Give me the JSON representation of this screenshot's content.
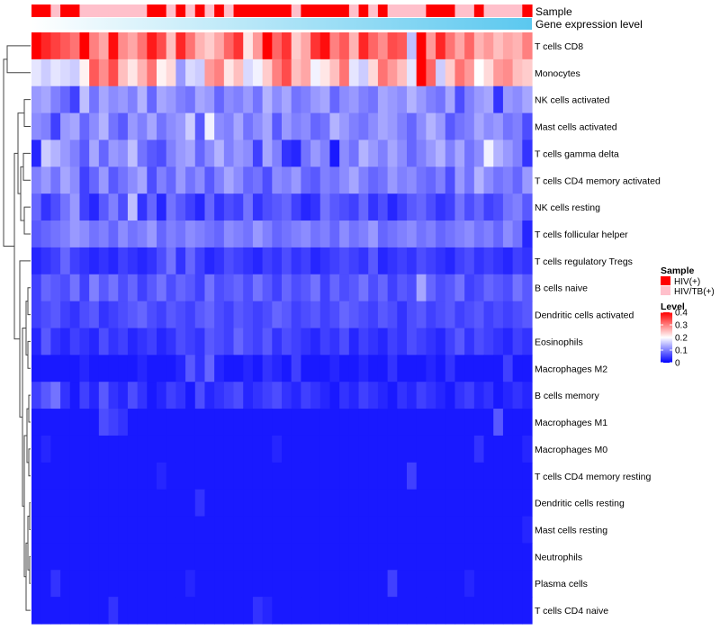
{
  "chart_data": {
    "type": "heatmap",
    "title": "",
    "annotation_tracks": [
      {
        "name": "Sample",
        "kind": "categorical"
      },
      {
        "name": "Gene expression level",
        "kind": "continuous"
      }
    ],
    "sample_groups": [
      "HIV(+)",
      "HIV(+)",
      "HIV/TB(+)",
      "HIV(+)",
      "HIV(+)",
      "HIV/TB(+)",
      "HIV/TB(+)",
      "HIV/TB(+)",
      "HIV/TB(+)",
      "HIV/TB(+)",
      "HIV/TB(+)",
      "HIV/TB(+)",
      "HIV(+)",
      "HIV(+)",
      "HIV/TB(+)",
      "HIV(+)",
      "HIV/TB(+)",
      "HIV(+)",
      "HIV/TB(+)",
      "HIV(+)",
      "HIV/TB(+)",
      "HIV(+)",
      "HIV(+)",
      "HIV(+)",
      "HIV(+)",
      "HIV(+)",
      "HIV(+)",
      "HIV/TB(+)",
      "HIV(+)",
      "HIV(+)",
      "HIV(+)",
      "HIV(+)",
      "HIV(+)",
      "HIV/TB(+)",
      "HIV(+)",
      "HIV/TB(+)",
      "HIV(+)",
      "HIV/TB(+)",
      "HIV/TB(+)",
      "HIV/TB(+)",
      "HIV/TB(+)",
      "HIV(+)",
      "HIV(+)",
      "HIV(+)",
      "HIV/TB(+)",
      "HIV/TB(+)",
      "HIV(+)",
      "HIV/TB(+)",
      "HIV/TB(+)",
      "HIV/TB(+)",
      "HIV/TB(+)",
      "HIV(+)"
    ],
    "rows": [
      "T cells CD8",
      "Monocytes",
      "NK cells activated",
      "Mast cells activated",
      "T cells gamma delta",
      "T cells CD4 memory activated",
      "NK cells resting",
      "T cells follicular helper",
      "T cells regulatory  Tregs",
      "B cells naive",
      "Dendritic cells activated",
      "Eosinophils",
      "Macrophages M2",
      "B cells memory",
      "Macrophages M1",
      "Macrophages M0",
      "T cells CD4 memory resting",
      "Dendritic cells resting",
      "Mast cells resting",
      "Neutrophils",
      "Plasma cells",
      "T cells CD4 naive"
    ],
    "values": [
      [
        0.42,
        0.37,
        0.35,
        0.33,
        0.31,
        0.4,
        0.3,
        0.27,
        0.39,
        0.29,
        0.27,
        0.31,
        0.38,
        0.34,
        0.25,
        0.37,
        0.31,
        0.26,
        0.24,
        0.27,
        0.32,
        0.36,
        0.22,
        0.28,
        0.4,
        0.32,
        0.36,
        0.24,
        0.27,
        0.36,
        0.39,
        0.3,
        0.33,
        0.26,
        0.37,
        0.32,
        0.29,
        0.34,
        0.33,
        0.15,
        0.41,
        0.28,
        0.37,
        0.31,
        0.27,
        0.32,
        0.26,
        0.28,
        0.25,
        0.27,
        0.26,
        0.3
      ],
      [
        0.18,
        0.16,
        0.18,
        0.17,
        0.16,
        0.21,
        0.33,
        0.29,
        0.34,
        0.25,
        0.22,
        0.26,
        0.31,
        0.21,
        0.23,
        0.12,
        0.17,
        0.16,
        0.28,
        0.3,
        0.22,
        0.25,
        0.17,
        0.19,
        0.24,
        0.3,
        0.34,
        0.25,
        0.27,
        0.19,
        0.22,
        0.25,
        0.31,
        0.18,
        0.16,
        0.23,
        0.31,
        0.28,
        0.25,
        0.18,
        0.42,
        0.32,
        0.16,
        0.24,
        0.31,
        0.28,
        0.2,
        0.23,
        0.28,
        0.29,
        0.25,
        0.24
      ],
      [
        0.12,
        0.13,
        0.1,
        0.08,
        0.05,
        0.15,
        0.09,
        0.13,
        0.11,
        0.12,
        0.1,
        0.14,
        0.08,
        0.13,
        0.12,
        0.1,
        0.09,
        0.13,
        0.12,
        0.08,
        0.11,
        0.1,
        0.12,
        0.09,
        0.14,
        0.11,
        0.13,
        0.09,
        0.1,
        0.12,
        0.13,
        0.08,
        0.11,
        0.12,
        0.1,
        0.09,
        0.13,
        0.12,
        0.11,
        0.14,
        0.12,
        0.1,
        0.09,
        0.13,
        0.06,
        0.1,
        0.12,
        0.13,
        0.04,
        0.12,
        0.11,
        0.13
      ],
      [
        0.11,
        0.1,
        0.05,
        0.12,
        0.13,
        0.08,
        0.11,
        0.14,
        0.09,
        0.07,
        0.12,
        0.1,
        0.13,
        0.09,
        0.11,
        0.12,
        0.16,
        0.07,
        0.19,
        0.11,
        0.1,
        0.13,
        0.09,
        0.11,
        0.13,
        0.07,
        0.12,
        0.1,
        0.11,
        0.08,
        0.09,
        0.14,
        0.12,
        0.1,
        0.09,
        0.11,
        0.13,
        0.12,
        0.1,
        0.08,
        0.11,
        0.14,
        0.12,
        0.07,
        0.09,
        0.1,
        0.13,
        0.11,
        0.12,
        0.09,
        0.1,
        0.06
      ],
      [
        0.03,
        0.16,
        0.14,
        0.12,
        0.1,
        0.07,
        0.13,
        0.08,
        0.12,
        0.11,
        0.15,
        0.09,
        0.07,
        0.06,
        0.1,
        0.12,
        0.13,
        0.08,
        0.11,
        0.14,
        0.1,
        0.12,
        0.11,
        0.05,
        0.13,
        0.1,
        0.04,
        0.03,
        0.09,
        0.12,
        0.1,
        0.02,
        0.11,
        0.09,
        0.14,
        0.12,
        0.1,
        0.13,
        0.11,
        0.08,
        0.1,
        0.12,
        0.14,
        0.1,
        0.13,
        0.09,
        0.11,
        0.19,
        0.14,
        0.12,
        0.1,
        0.04
      ],
      [
        0.1,
        0.12,
        0.09,
        0.13,
        0.11,
        0.05,
        0.08,
        0.12,
        0.07,
        0.09,
        0.11,
        0.13,
        0.06,
        0.1,
        0.08,
        0.12,
        0.09,
        0.11,
        0.07,
        0.1,
        0.13,
        0.11,
        0.08,
        0.09,
        0.06,
        0.11,
        0.1,
        0.12,
        0.08,
        0.07,
        0.1,
        0.09,
        0.11,
        0.13,
        0.1,
        0.08,
        0.09,
        0.12,
        0.1,
        0.11,
        0.09,
        0.08,
        0.1,
        0.06,
        0.12,
        0.09,
        0.14,
        0.11,
        0.09,
        0.1,
        0.08,
        0.12
      ],
      [
        0.08,
        0.04,
        0.06,
        0.09,
        0.12,
        0.05,
        0.03,
        0.07,
        0.1,
        0.06,
        0.15,
        0.04,
        0.08,
        0.03,
        0.09,
        0.07,
        0.05,
        0.03,
        0.08,
        0.04,
        0.06,
        0.05,
        0.09,
        0.04,
        0.06,
        0.07,
        0.08,
        0.05,
        0.03,
        0.04,
        0.09,
        0.07,
        0.06,
        0.05,
        0.08,
        0.04,
        0.06,
        0.03,
        0.05,
        0.07,
        0.08,
        0.06,
        0.04,
        0.05,
        0.09,
        0.06,
        0.08,
        0.05,
        0.06,
        0.09,
        0.1,
        0.07
      ],
      [
        0.07,
        0.08,
        0.09,
        0.1,
        0.12,
        0.11,
        0.09,
        0.1,
        0.08,
        0.11,
        0.09,
        0.1,
        0.12,
        0.08,
        0.1,
        0.09,
        0.11,
        0.1,
        0.09,
        0.08,
        0.11,
        0.1,
        0.09,
        0.12,
        0.1,
        0.08,
        0.09,
        0.1,
        0.11,
        0.09,
        0.1,
        0.08,
        0.11,
        0.09,
        0.1,
        0.12,
        0.08,
        0.09,
        0.1,
        0.11,
        0.09,
        0.1,
        0.08,
        0.09,
        0.1,
        0.11,
        0.09,
        0.1,
        0.08,
        0.11,
        0.09,
        0.03
      ],
      [
        0.03,
        0.04,
        0.05,
        0.08,
        0.05,
        0.04,
        0.03,
        0.04,
        0.03,
        0.05,
        0.04,
        0.03,
        0.04,
        0.06,
        0.09,
        0.04,
        0.08,
        0.05,
        0.03,
        0.04,
        0.06,
        0.05,
        0.04,
        0.03,
        0.05,
        0.04,
        0.06,
        0.04,
        0.05,
        0.03,
        0.04,
        0.05,
        0.06,
        0.05,
        0.04,
        0.07,
        0.03,
        0.04,
        0.05,
        0.04,
        0.06,
        0.05,
        0.04,
        0.03,
        0.05,
        0.06,
        0.04,
        0.05,
        0.04,
        0.03,
        0.05,
        0.04
      ],
      [
        0.05,
        0.08,
        0.07,
        0.06,
        0.09,
        0.05,
        0.1,
        0.07,
        0.09,
        0.06,
        0.08,
        0.05,
        0.07,
        0.09,
        0.06,
        0.08,
        0.07,
        0.05,
        0.09,
        0.06,
        0.07,
        0.08,
        0.06,
        0.09,
        0.07,
        0.05,
        0.08,
        0.06,
        0.07,
        0.09,
        0.05,
        0.08,
        0.06,
        0.07,
        0.09,
        0.06,
        0.08,
        0.05,
        0.07,
        0.06,
        0.13,
        0.08,
        0.06,
        0.07,
        0.09,
        0.05,
        0.06,
        0.08,
        0.07,
        0.06,
        0.09,
        0.07
      ],
      [
        0.05,
        0.06,
        0.07,
        0.05,
        0.04,
        0.06,
        0.07,
        0.04,
        0.05,
        0.06,
        0.07,
        0.08,
        0.06,
        0.05,
        0.07,
        0.06,
        0.05,
        0.07,
        0.08,
        0.06,
        0.05,
        0.07,
        0.06,
        0.05,
        0.06,
        0.08,
        0.07,
        0.05,
        0.06,
        0.07,
        0.05,
        0.06,
        0.08,
        0.07,
        0.06,
        0.05,
        0.07,
        0.06,
        0.04,
        0.06,
        0.07,
        0.05,
        0.06,
        0.07,
        0.05,
        0.06,
        0.07,
        0.05,
        0.06,
        0.05,
        0.06,
        0.07
      ],
      [
        0.03,
        0.07,
        0.04,
        0.03,
        0.05,
        0.04,
        0.03,
        0.06,
        0.04,
        0.05,
        0.03,
        0.04,
        0.05,
        0.03,
        0.04,
        0.06,
        0.05,
        0.04,
        0.07,
        0.06,
        0.05,
        0.08,
        0.06,
        0.05,
        0.07,
        0.04,
        0.06,
        0.05,
        0.04,
        0.03,
        0.05,
        0.04,
        0.06,
        0.03,
        0.05,
        0.04,
        0.03,
        0.05,
        0.04,
        0.06,
        0.05,
        0.04,
        0.03,
        0.05,
        0.07,
        0.04,
        0.06,
        0.05,
        0.04,
        0.03,
        0.05,
        0.04
      ],
      [
        0.02,
        0.02,
        0.02,
        0.02,
        0.02,
        0.03,
        0.02,
        0.02,
        0.02,
        0.02,
        0.02,
        0.03,
        0.02,
        0.02,
        0.02,
        0.03,
        0.07,
        0.04,
        0.08,
        0.03,
        0.02,
        0.02,
        0.03,
        0.02,
        0.04,
        0.03,
        0.02,
        0.05,
        0.02,
        0.02,
        0.02,
        0.03,
        0.02,
        0.02,
        0.03,
        0.02,
        0.02,
        0.04,
        0.02,
        0.02,
        0.02,
        0.03,
        0.02,
        0.04,
        0.02,
        0.02,
        0.02,
        0.02,
        0.02,
        0.05,
        0.02,
        0.02
      ],
      [
        0.05,
        0.07,
        0.09,
        0.04,
        0.02,
        0.05,
        0.03,
        0.07,
        0.04,
        0.03,
        0.06,
        0.04,
        0.02,
        0.03,
        0.05,
        0.04,
        0.02,
        0.06,
        0.03,
        0.04,
        0.05,
        0.06,
        0.03,
        0.04,
        0.05,
        0.06,
        0.04,
        0.03,
        0.05,
        0.04,
        0.03,
        0.02,
        0.04,
        0.03,
        0.05,
        0.04,
        0.03,
        0.02,
        0.04,
        0.03,
        0.05,
        0.04,
        0.03,
        0.02,
        0.04,
        0.05,
        0.03,
        0.04,
        0.02,
        0.03,
        0.04,
        0.03
      ],
      [
        0.02,
        0.02,
        0.02,
        0.02,
        0.02,
        0.02,
        0.02,
        0.06,
        0.05,
        0.04,
        0.02,
        0.02,
        0.02,
        0.02,
        0.02,
        0.02,
        0.02,
        0.02,
        0.02,
        0.02,
        0.02,
        0.02,
        0.02,
        0.02,
        0.02,
        0.02,
        0.02,
        0.02,
        0.02,
        0.02,
        0.02,
        0.02,
        0.02,
        0.02,
        0.02,
        0.02,
        0.02,
        0.02,
        0.02,
        0.02,
        0.02,
        0.02,
        0.02,
        0.02,
        0.02,
        0.02,
        0.02,
        0.02,
        0.07,
        0.02,
        0.02,
        0.02
      ],
      [
        0.02,
        0.03,
        0.02,
        0.02,
        0.02,
        0.02,
        0.02,
        0.02,
        0.02,
        0.02,
        0.02,
        0.02,
        0.02,
        0.02,
        0.02,
        0.02,
        0.02,
        0.02,
        0.02,
        0.02,
        0.02,
        0.02,
        0.02,
        0.02,
        0.02,
        0.03,
        0.02,
        0.02,
        0.02,
        0.02,
        0.02,
        0.02,
        0.02,
        0.02,
        0.02,
        0.02,
        0.02,
        0.02,
        0.02,
        0.02,
        0.02,
        0.02,
        0.02,
        0.02,
        0.02,
        0.02,
        0.04,
        0.02,
        0.02,
        0.02,
        0.02,
        0.03
      ],
      [
        0.02,
        0.02,
        0.02,
        0.02,
        0.02,
        0.02,
        0.02,
        0.02,
        0.02,
        0.02,
        0.02,
        0.02,
        0.02,
        0.03,
        0.02,
        0.02,
        0.02,
        0.02,
        0.02,
        0.02,
        0.02,
        0.02,
        0.02,
        0.02,
        0.02,
        0.02,
        0.02,
        0.02,
        0.02,
        0.02,
        0.02,
        0.02,
        0.02,
        0.02,
        0.02,
        0.02,
        0.02,
        0.02,
        0.02,
        0.05,
        0.02,
        0.02,
        0.02,
        0.02,
        0.02,
        0.02,
        0.02,
        0.02,
        0.02,
        0.02,
        0.02,
        0.02
      ],
      [
        0.02,
        0.02,
        0.02,
        0.02,
        0.02,
        0.02,
        0.02,
        0.02,
        0.02,
        0.02,
        0.02,
        0.02,
        0.02,
        0.02,
        0.02,
        0.02,
        0.02,
        0.04,
        0.02,
        0.02,
        0.02,
        0.02,
        0.02,
        0.02,
        0.02,
        0.02,
        0.02,
        0.02,
        0.02,
        0.02,
        0.02,
        0.02,
        0.02,
        0.02,
        0.02,
        0.02,
        0.02,
        0.02,
        0.02,
        0.02,
        0.02,
        0.02,
        0.02,
        0.02,
        0.02,
        0.02,
        0.02,
        0.02,
        0.02,
        0.02,
        0.02,
        0.02
      ],
      [
        0.02,
        0.02,
        0.02,
        0.02,
        0.02,
        0.02,
        0.02,
        0.02,
        0.02,
        0.02,
        0.02,
        0.02,
        0.02,
        0.02,
        0.02,
        0.02,
        0.02,
        0.02,
        0.02,
        0.02,
        0.02,
        0.02,
        0.02,
        0.02,
        0.02,
        0.02,
        0.02,
        0.02,
        0.02,
        0.02,
        0.02,
        0.02,
        0.02,
        0.02,
        0.02,
        0.02,
        0.02,
        0.02,
        0.02,
        0.02,
        0.02,
        0.02,
        0.02,
        0.02,
        0.02,
        0.02,
        0.02,
        0.02,
        0.02,
        0.02,
        0.02,
        0.03
      ],
      [
        0.02,
        0.02,
        0.02,
        0.02,
        0.02,
        0.02,
        0.02,
        0.02,
        0.02,
        0.02,
        0.02,
        0.02,
        0.02,
        0.02,
        0.02,
        0.02,
        0.02,
        0.02,
        0.02,
        0.02,
        0.02,
        0.02,
        0.02,
        0.02,
        0.02,
        0.02,
        0.02,
        0.02,
        0.02,
        0.02,
        0.02,
        0.02,
        0.02,
        0.02,
        0.02,
        0.02,
        0.02,
        0.02,
        0.02,
        0.02,
        0.02,
        0.02,
        0.02,
        0.02,
        0.02,
        0.02,
        0.02,
        0.02,
        0.02,
        0.02,
        0.02,
        0.02
      ],
      [
        0.02,
        0.02,
        0.04,
        0.02,
        0.02,
        0.02,
        0.02,
        0.02,
        0.02,
        0.02,
        0.02,
        0.02,
        0.02,
        0.02,
        0.02,
        0.02,
        0.03,
        0.02,
        0.02,
        0.02,
        0.02,
        0.02,
        0.02,
        0.02,
        0.02,
        0.02,
        0.02,
        0.02,
        0.02,
        0.02,
        0.02,
        0.02,
        0.02,
        0.02,
        0.02,
        0.02,
        0.02,
        0.05,
        0.02,
        0.02,
        0.02,
        0.02,
        0.02,
        0.02,
        0.02,
        0.03,
        0.02,
        0.02,
        0.02,
        0.02,
        0.02,
        0.02
      ],
      [
        0.02,
        0.02,
        0.02,
        0.02,
        0.02,
        0.02,
        0.02,
        0.02,
        0.04,
        0.02,
        0.02,
        0.02,
        0.02,
        0.02,
        0.02,
        0.02,
        0.02,
        0.02,
        0.02,
        0.02,
        0.02,
        0.02,
        0.02,
        0.04,
        0.03,
        0.02,
        0.02,
        0.02,
        0.02,
        0.02,
        0.02,
        0.02,
        0.02,
        0.02,
        0.02,
        0.02,
        0.02,
        0.02,
        0.02,
        0.02,
        0.02,
        0.02,
        0.02,
        0.02,
        0.02,
        0.02,
        0.02,
        0.02,
        0.02,
        0.02,
        0.02,
        0.02
      ]
    ],
    "color_scale": {
      "min": 0,
      "max": 0.4,
      "low": "#0000ff",
      "mid": "#ffffff",
      "mid_value": 0.2,
      "high": "#ff0000"
    },
    "legend": {
      "sample_title": "Sample",
      "sample_items": [
        {
          "label": "HIV(+)",
          "color": "#ff0000"
        },
        {
          "label": "HIV/TB(+)",
          "color": "#ffc0cb"
        }
      ],
      "level_title": "Level",
      "level_ticks": [
        {
          "value": 0.4,
          "label": "0.4"
        },
        {
          "value": 0.3,
          "label": "0.3"
        },
        {
          "value": 0.2,
          "label": "0.2"
        },
        {
          "value": 0.1,
          "label": "0.1"
        },
        {
          "value": 0,
          "label": "0"
        }
      ],
      "position": "right"
    },
    "gradient_bar": {
      "from": "#ffffff",
      "to": "#5bc8ef"
    },
    "dendrogram": "rows"
  }
}
